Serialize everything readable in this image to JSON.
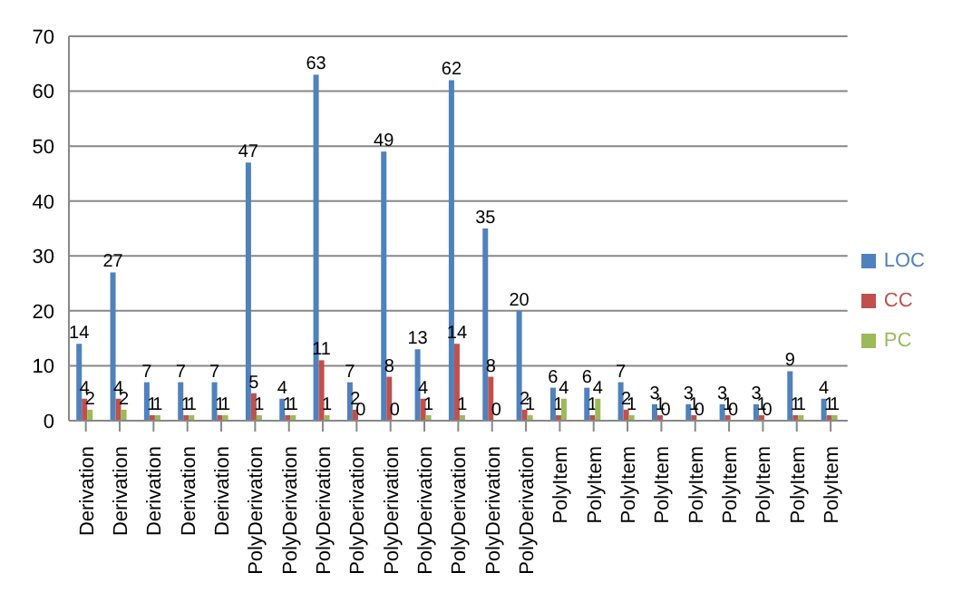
{
  "chart_data": {
    "type": "bar",
    "categories": [
      "Derivation",
      "Derivation",
      "Derivation",
      "Derivation",
      "Derivation",
      "PolyDerivation",
      "PolyDerivation",
      "PolyDerivation",
      "PolyDerivation",
      "PolyDerivation",
      "PolyDerivation",
      "PolyDerivation",
      "PolyDerivation",
      "PolyDerivation",
      "PolyItem",
      "PolyItem",
      "PolyItem",
      "PolyItem",
      "PolyItem",
      "PolyItem",
      "PolyItem",
      "PolyItem",
      "PolyItem"
    ],
    "series": [
      {
        "name": "LOC",
        "color": "#4f81bd",
        "values": [
          14,
          27,
          7,
          7,
          7,
          47,
          4,
          63,
          7,
          49,
          13,
          62,
          35,
          20,
          6,
          6,
          7,
          3,
          3,
          3,
          3,
          9,
          4
        ]
      },
      {
        "name": "CC",
        "color": "#c0504d",
        "values": [
          4,
          4,
          1,
          1,
          1,
          5,
          1,
          11,
          2,
          8,
          4,
          14,
          8,
          2,
          1,
          1,
          2,
          1,
          1,
          1,
          1,
          1,
          1
        ]
      },
      {
        "name": "PC",
        "color": "#9bbb59",
        "values": [
          2,
          2,
          1,
          1,
          1,
          1,
          1,
          1,
          0,
          0,
          1,
          1,
          0,
          1,
          4,
          4,
          1,
          0,
          0,
          0,
          0,
          1,
          1
        ]
      }
    ],
    "ylim": [
      0,
      70
    ],
    "yticks": [
      0,
      10,
      20,
      30,
      40,
      50,
      60,
      70
    ],
    "grid": "y",
    "legend": "right",
    "data_labels": true
  }
}
